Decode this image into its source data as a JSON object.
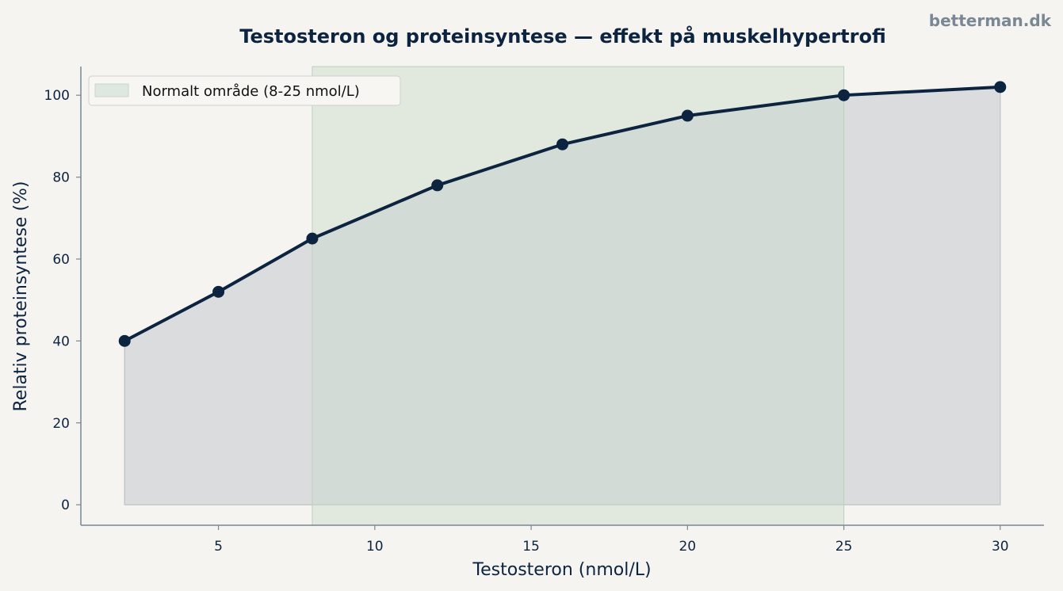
{
  "watermark": "betterman.dk",
  "chart_data": {
    "type": "line",
    "title": "Testosteron og proteinsyntese — effekt på muskelhypertrofi",
    "xlabel": "Testosteron (nmol/L)",
    "ylabel": "Relativ proteinsyntese (%)",
    "x": [
      2,
      5,
      8,
      12,
      16,
      20,
      25,
      30
    ],
    "series": [
      {
        "values": [
          40,
          52,
          65,
          78,
          88,
          95,
          100,
          102
        ]
      }
    ],
    "area_fill": true,
    "xlim": [
      0.6,
      31.4
    ],
    "ylim": [
      -5,
      107
    ],
    "xticks": [
      5,
      10,
      15,
      20,
      25,
      30
    ],
    "yticks": [
      0,
      20,
      40,
      60,
      80,
      100
    ],
    "shaded_range": {
      "x_from": 8,
      "x_to": 25,
      "label": "Normalt område (8-25 nmol/L)"
    },
    "legend_position": "top-left",
    "grid": false,
    "colors": {
      "line": "#0d2440",
      "area_fill": "#d9dadc",
      "range_fill": "#dfe8e0",
      "background": "#f5f4f0",
      "axis": "#7a8794"
    }
  }
}
